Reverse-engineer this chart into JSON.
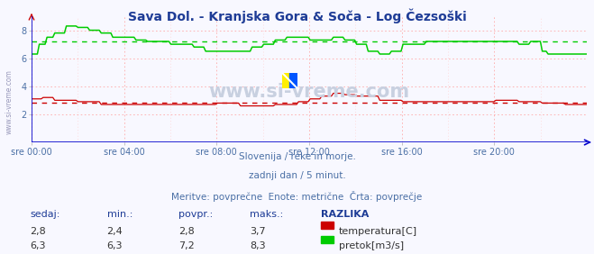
{
  "title": "Sava Dol. - Kranjska Gora & Soča - Log Čezsoški",
  "title_color": "#1e3c96",
  "title_fontsize": 10,
  "bg_color": "#f8f8ff",
  "grid_color_h": "#ffcccc",
  "grid_color_v": "#ffcccc",
  "text_color": "#4a6fa5",
  "watermark": "www.si-vreme.com",
  "x_ticks": [
    0,
    4,
    8,
    12,
    16,
    20
  ],
  "x_tick_labels": [
    "sre 00:00",
    "sre 04:00",
    "sre 08:00",
    "sre 12:00",
    "sre 16:00",
    "sre 20:00"
  ],
  "x_max": 24,
  "y_min": 0,
  "y_max": 9,
  "y_ticks": [
    2,
    4,
    6,
    8
  ],
  "temp_avg": 2.8,
  "flow_avg": 7.2,
  "temp_color": "#cc0000",
  "flow_color": "#00cc00",
  "axis_color": "#0000cc",
  "subtitle1": "Slovenija / reke in morje.",
  "subtitle2": "zadnji dan / 5 minut.",
  "subtitle3": "Meritve: povprečne  Enote: metrične  Črta: povprečje",
  "table_headers": [
    "sedaj:",
    "min.:",
    "povpr.:",
    "maks.:",
    "RAZLIKA"
  ],
  "temp_row": [
    "2,8",
    "2,4",
    "2,8",
    "3,7"
  ],
  "flow_row": [
    "6,3",
    "6,3",
    "7,2",
    "8,3"
  ],
  "temp_label": "temperatura[C]",
  "flow_label": "pretok[m3/s]",
  "watermark_color": "#c8d0e0",
  "left_label": "www.si-vreme.com"
}
